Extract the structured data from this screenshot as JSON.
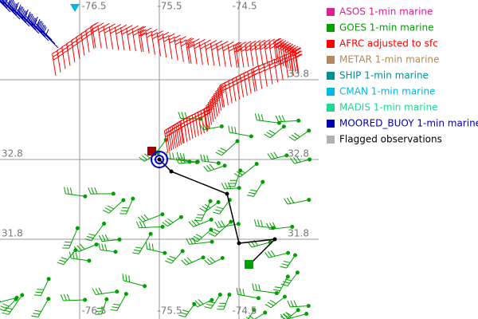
{
  "map": {
    "top_labels": [
      "-76.5",
      "-75.5",
      "-74.5"
    ],
    "bottom_labels": [
      "-76.5",
      "-75.5",
      "-74.5"
    ],
    "left_labels": [
      "32.8",
      "31.8"
    ],
    "right_labels": [
      "33.8",
      "32.8",
      "31.8"
    ]
  },
  "legend": {
    "items": [
      {
        "label": "ASOS 1-min marine",
        "color": "#e0208f"
      },
      {
        "label": "GOES 1-min marine",
        "color": "#00a000"
      },
      {
        "label": "AFRC adjusted to sfc",
        "color": "#ff0000"
      },
      {
        "label": "METAR 1-min marine",
        "color": "#b08a60"
      },
      {
        "label": "SHIP 1-min marine",
        "color": "#009090"
      },
      {
        "label": "CMAN 1-min marine",
        "color": "#00b8e8"
      },
      {
        "label": "MADIS 1-min marine",
        "color": "#20d890"
      },
      {
        "label": "MOORED_BUOY 1-min marine",
        "color": "#0000b0"
      },
      {
        "label": "Flagged observations",
        "color": "#b0b0b0"
      }
    ]
  }
}
